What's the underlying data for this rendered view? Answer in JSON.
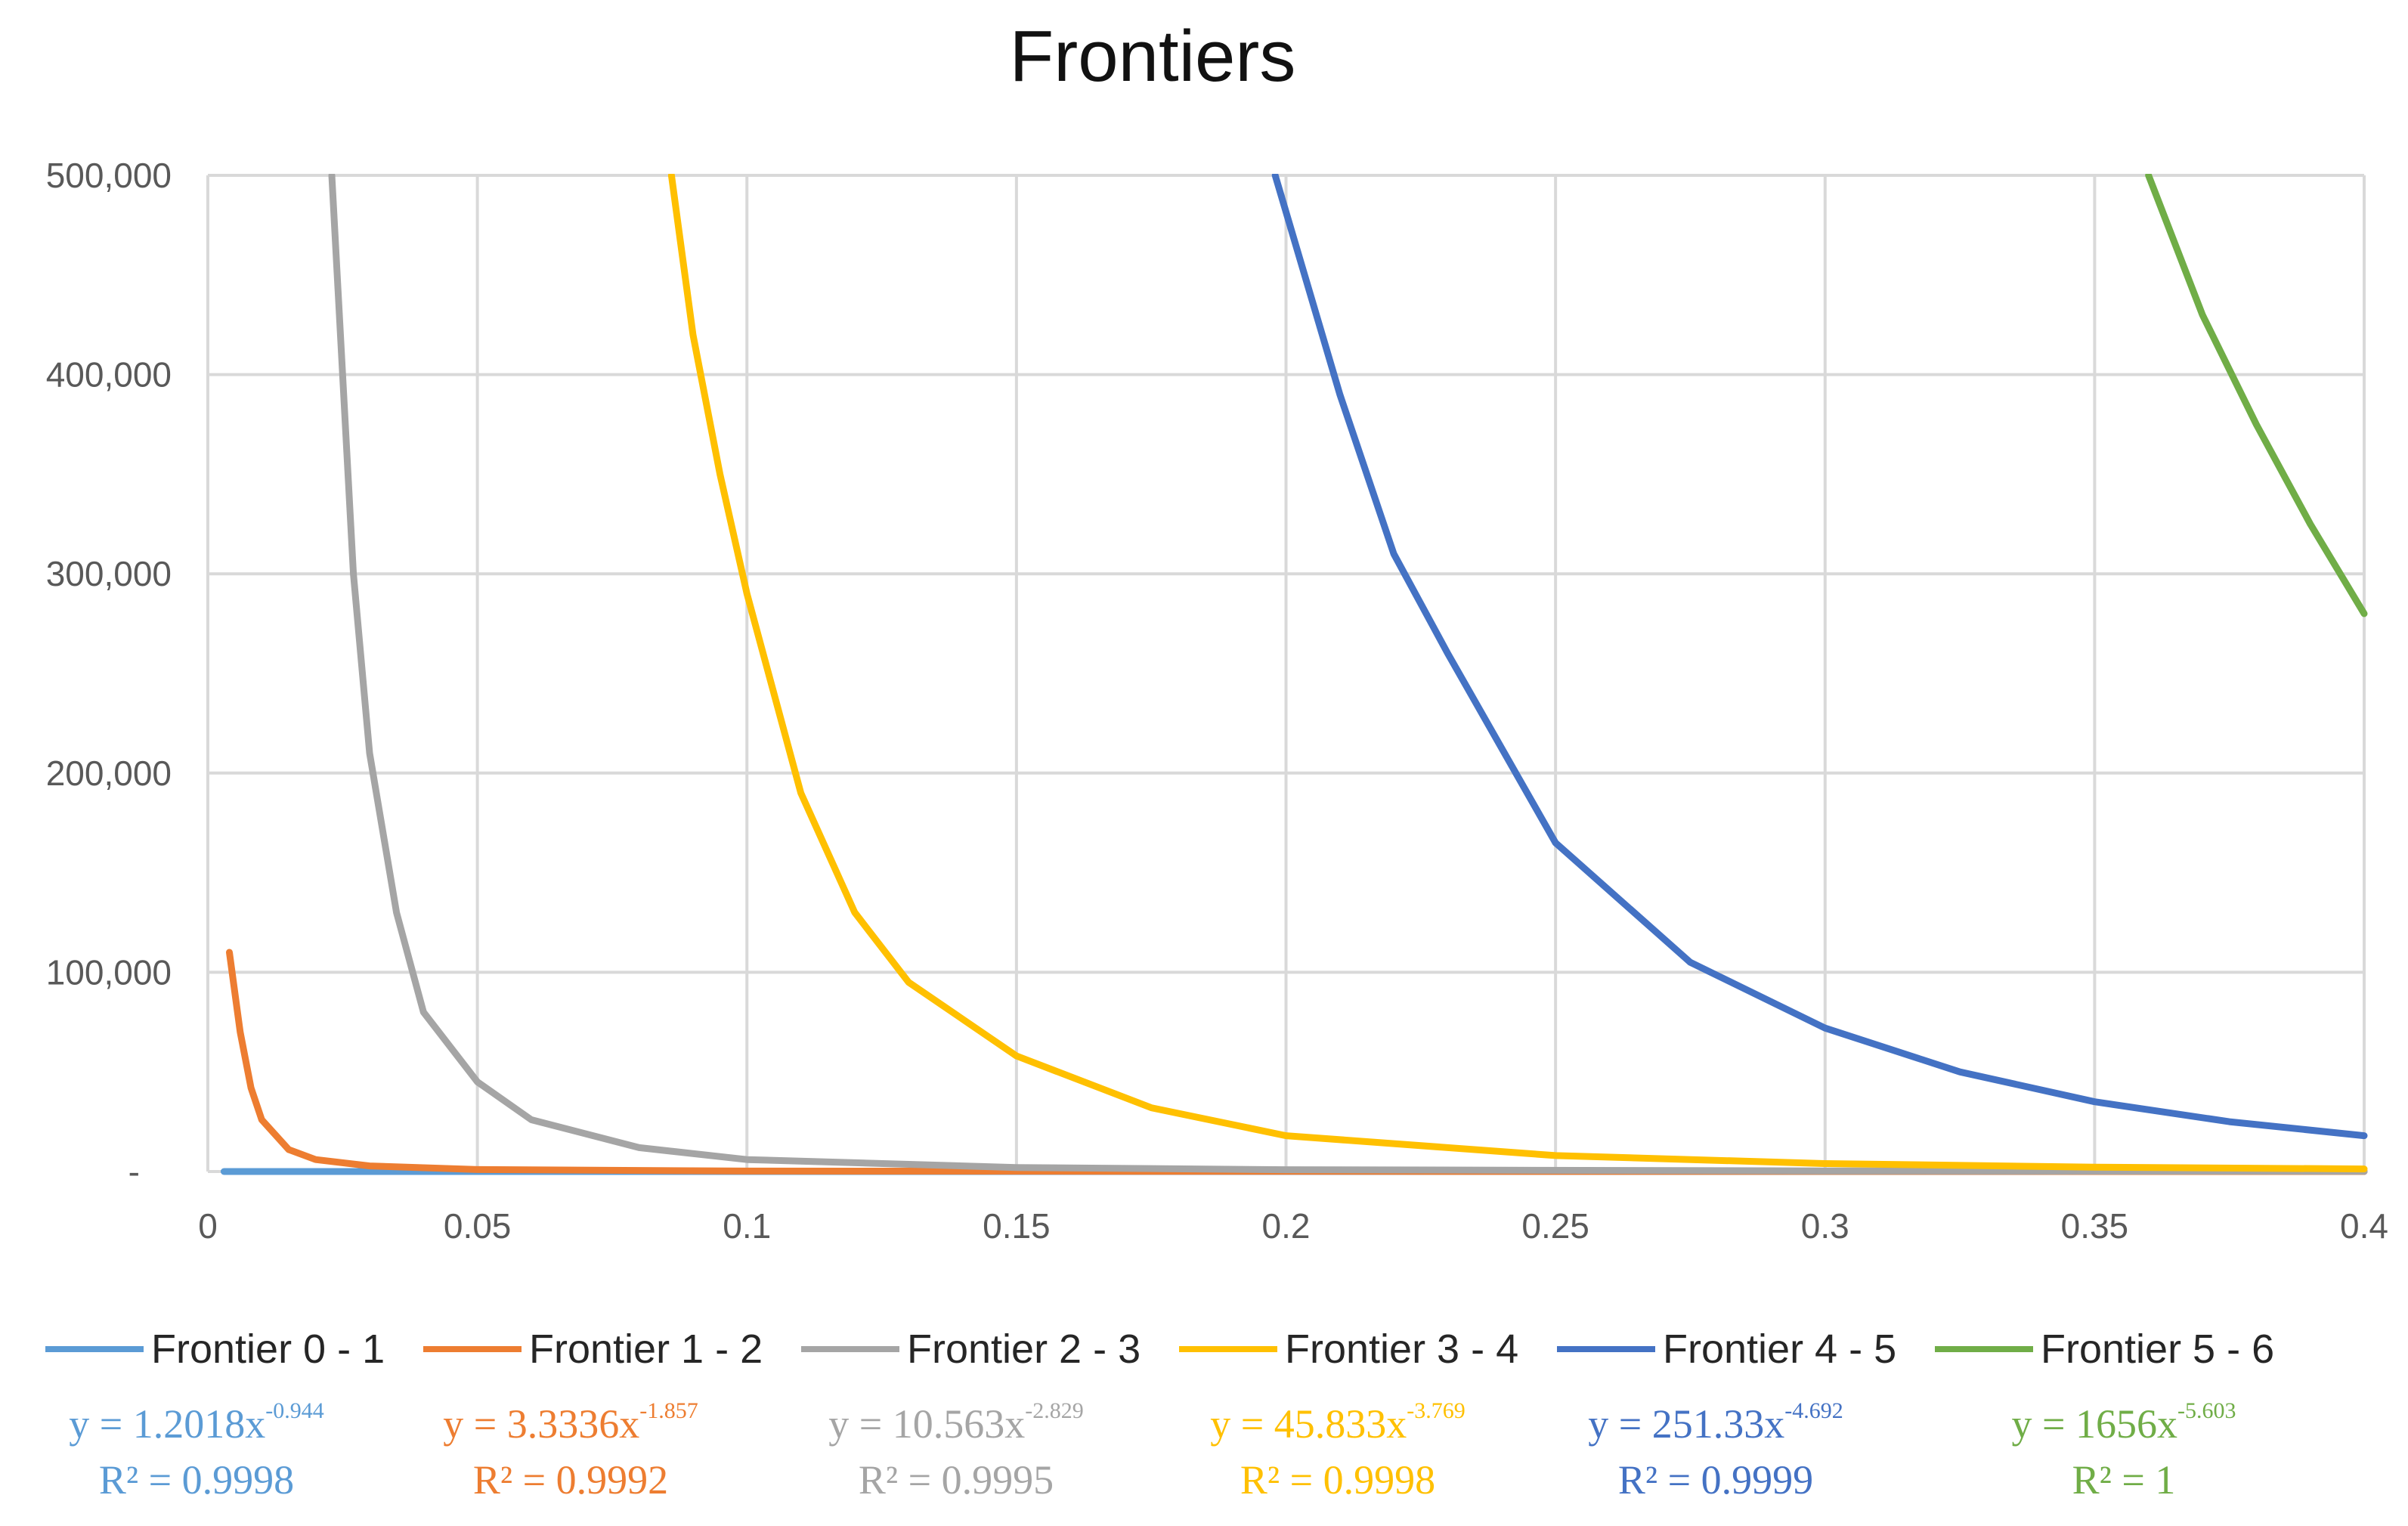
{
  "chart_data": {
    "type": "line",
    "title": "Frontiers",
    "xlabel": "",
    "ylabel": "",
    "xlim": [
      0,
      0.4
    ],
    "ylim": [
      0,
      500000
    ],
    "x_ticks": [
      {
        "value": 0,
        "label": "0"
      },
      {
        "value": 0.05,
        "label": "0.05"
      },
      {
        "value": 0.1,
        "label": "0.1"
      },
      {
        "value": 0.15,
        "label": "0.15"
      },
      {
        "value": 0.2,
        "label": "0.2"
      },
      {
        "value": 0.25,
        "label": "0.25"
      },
      {
        "value": 0.3,
        "label": "0.3"
      },
      {
        "value": 0.35,
        "label": "0.35"
      },
      {
        "value": 0.4,
        "label": "0.4"
      }
    ],
    "y_ticks": [
      {
        "value": 0,
        "label": "-"
      },
      {
        "value": 100000,
        "label": "100,000"
      },
      {
        "value": 200000,
        "label": "200,000"
      },
      {
        "value": 300000,
        "label": "300,000"
      },
      {
        "value": 400000,
        "label": "400,000"
      },
      {
        "value": 500000,
        "label": "500,000"
      }
    ],
    "grid": true,
    "legend_position": "bottom",
    "series": [
      {
        "name": "Frontier 0 - 1",
        "color": "#5B9BD5",
        "x": [
          0.003,
          0.1,
          0.2,
          0.3,
          0.4
        ],
        "y": [
          0,
          0,
          0,
          0,
          0
        ],
        "trendline": {
          "equation": "y = 1.2018x",
          "exponent": "-0.944",
          "r2": "R² = 0.9998"
        }
      },
      {
        "name": "Frontier 1 - 2",
        "color": "#ED7D31",
        "x": [
          0.004,
          0.006,
          0.008,
          0.01,
          0.015,
          0.02,
          0.03,
          0.05,
          0.1,
          0.2,
          0.3,
          0.4
        ],
        "y": [
          110000,
          70000,
          42000,
          26000,
          11000,
          6000,
          2800,
          1000,
          240,
          60,
          25,
          15
        ],
        "trendline": {
          "equation": "y = 3.3336x",
          "exponent": "-1.857",
          "r2": "R² = 0.9992"
        }
      },
      {
        "name": "Frontier 2 - 3",
        "color": "#A5A5A5",
        "x": [
          0.023,
          0.025,
          0.027,
          0.03,
          0.035,
          0.04,
          0.05,
          0.06,
          0.08,
          0.1,
          0.15,
          0.2,
          0.3,
          0.4
        ],
        "y": [
          500000,
          400000,
          300000,
          210000,
          130000,
          80000,
          45000,
          26000,
          12000,
          6000,
          2000,
          900,
          300,
          120
        ],
        "trendline": {
          "equation": "y = 10.563x",
          "exponent": "-2.829",
          "r2": "R² = 0.9995"
        }
      },
      {
        "name": "Frontier 3 - 4",
        "color": "#FFC000",
        "x": [
          0.086,
          0.09,
          0.095,
          0.1,
          0.11,
          0.12,
          0.13,
          0.15,
          0.175,
          0.2,
          0.25,
          0.3,
          0.35,
          0.4
        ],
        "y": [
          500000,
          420000,
          350000,
          290000,
          190000,
          130000,
          95000,
          58000,
          32000,
          18000,
          8000,
          4000,
          2200,
          1300
        ],
        "trendline": {
          "equation": "y = 45.833x",
          "exponent": "-3.769",
          "r2": "R² = 0.9998"
        }
      },
      {
        "name": "Frontier 4 - 5",
        "color": "#4472C4",
        "x": [
          0.198,
          0.21,
          0.22,
          0.23,
          0.25,
          0.275,
          0.3,
          0.325,
          0.35,
          0.375,
          0.4
        ],
        "y": [
          500000,
          390000,
          310000,
          260000,
          165000,
          105000,
          72000,
          50000,
          35000,
          25000,
          18000
        ],
        "trendline": {
          "equation": "y = 251.33x",
          "exponent": "-4.692",
          "r2": "R² = 0.9999"
        }
      },
      {
        "name": "Frontier 5 - 6",
        "color": "#70AD47",
        "x": [
          0.36,
          0.37,
          0.38,
          0.39,
          0.4
        ],
        "y": [
          500000,
          430000,
          375000,
          325000,
          280000
        ],
        "trendline": {
          "equation": "y = 1656x",
          "exponent": "-5.603",
          "r2": "R² = 1"
        }
      }
    ]
  }
}
